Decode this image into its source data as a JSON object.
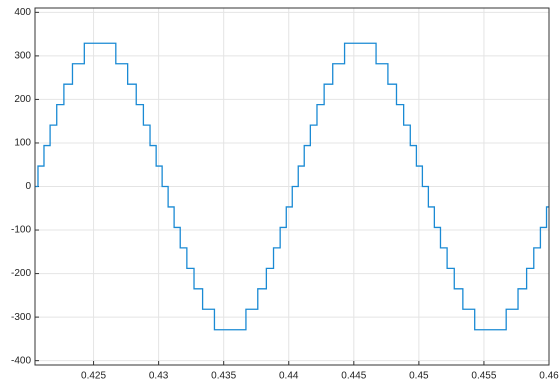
{
  "chart_data": {
    "type": "step-line",
    "xlim": [
      0.4205,
      0.46
    ],
    "ylim": [
      -410,
      410
    ],
    "xticks": [
      0.425,
      0.43,
      0.435,
      0.44,
      0.445,
      0.45,
      0.455,
      0.46
    ],
    "yticks": [
      -400,
      -300,
      -200,
      -100,
      0,
      100,
      200,
      300,
      400
    ],
    "grid": true,
    "series": [
      {
        "color": "#1a8ad4",
        "x": [
          0.4205,
          0.42073,
          0.42119,
          0.42166,
          0.42217,
          0.42272,
          0.42338,
          0.42429,
          0.42671,
          0.42762,
          0.42828,
          0.42883,
          0.42934,
          0.42981,
          0.43027,
          0.43073,
          0.43119,
          0.43166,
          0.43217,
          0.43272,
          0.43338,
          0.43429,
          0.43671,
          0.43762,
          0.43828,
          0.43883,
          0.43934,
          0.43981,
          0.44027,
          0.44073,
          0.44119,
          0.44166,
          0.44217,
          0.44272,
          0.44338,
          0.44429,
          0.44671,
          0.44762,
          0.44828,
          0.44883,
          0.44934,
          0.44981,
          0.45027,
          0.45073,
          0.45119,
          0.45166,
          0.45217,
          0.45272,
          0.45338,
          0.45429,
          0.45671,
          0.45762,
          0.45828,
          0.45883,
          0.45934,
          0.45981,
          0.46
        ],
        "values": [
          0,
          47,
          94,
          141,
          188,
          235,
          282,
          329,
          282,
          235,
          188,
          141,
          94,
          47,
          0,
          -47,
          -94,
          -141,
          -188,
          -235,
          -282,
          -329,
          -282,
          -235,
          -188,
          -141,
          -94,
          -47,
          0,
          47,
          94,
          141,
          188,
          235,
          282,
          329,
          282,
          235,
          188,
          141,
          94,
          47,
          0,
          -47,
          -94,
          -141,
          -188,
          -235,
          -282,
          -329,
          -282,
          -235,
          -188,
          -141,
          -94,
          -47,
          -47
        ]
      }
    ]
  }
}
